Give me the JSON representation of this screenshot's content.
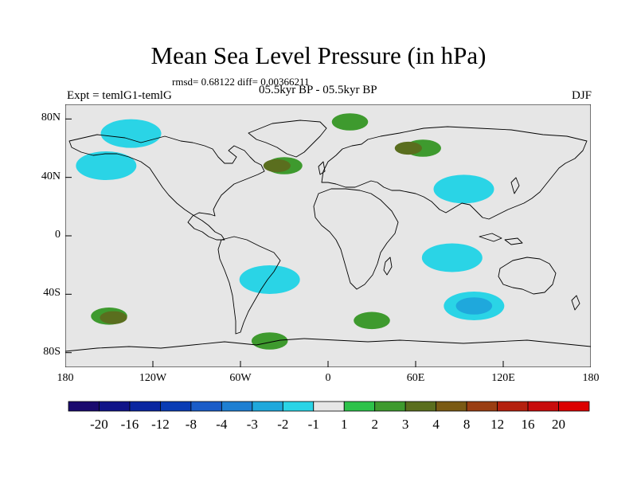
{
  "title": "Mean Sea Level Pressure (in hPa)",
  "stats": "rmsd= 0.68122 diff= 0.00366211",
  "experiment": "Expt = temlG1-temlG",
  "period": "05.5kyr BP - 05.5kyr BP",
  "season": "DJF",
  "chart_data": {
    "type": "heatmap",
    "subtype": "global difference map",
    "variable": "Mean Sea Level Pressure difference (hPa)",
    "lon_range": [
      -180,
      180
    ],
    "lat_range": [
      -90,
      90
    ],
    "lon_ticks": [
      {
        "value": -180,
        "label": "180"
      },
      {
        "value": -120,
        "label": "120W"
      },
      {
        "value": -60,
        "label": "60W"
      },
      {
        "value": 0,
        "label": "0"
      },
      {
        "value": 60,
        "label": "60E"
      },
      {
        "value": 120,
        "label": "120E"
      },
      {
        "value": 180,
        "label": "180"
      }
    ],
    "lat_ticks": [
      {
        "value": 80,
        "label": "80N"
      },
      {
        "value": 40,
        "label": "40N"
      },
      {
        "value": 0,
        "label": "0"
      },
      {
        "value": -40,
        "label": "40S"
      },
      {
        "value": -80,
        "label": "80S"
      }
    ],
    "colorbar": {
      "labels": [
        "-20",
        "-16",
        "-12",
        "-8",
        "-4",
        "-3",
        "-2",
        "-1",
        "1",
        "2",
        "3",
        "4",
        "8",
        "12",
        "16",
        "20"
      ],
      "colors": [
        "#1a0a6e",
        "#101488",
        "#0a26a0",
        "#0a3cb4",
        "#1a5cc8",
        "#1e7fd2",
        "#1fa8dc",
        "#2ad4e6",
        "#e6e6e6",
        "#2dc24a",
        "#3e9a2e",
        "#5a6e1e",
        "#7a5a14",
        "#9a3e12",
        "#b4200e",
        "#c80c0c",
        "#dc0000"
      ]
    },
    "background_color": "#e6e6e6",
    "anomalies": [
      {
        "region": "Arctic Canada",
        "lon": -135,
        "lat": 70,
        "level": -1
      },
      {
        "region": "North Pacific",
        "lon": -152,
        "lat": 48,
        "level": -1
      },
      {
        "region": "North Atlantic",
        "lon": -30,
        "lat": 48,
        "level": 2
      },
      {
        "region": "North Atlantic core",
        "lon": -35,
        "lat": 48,
        "level": 3
      },
      {
        "region": "Barents Sea",
        "lon": 15,
        "lat": 78,
        "level": 2
      },
      {
        "region": "Siberia",
        "lon": 65,
        "lat": 60,
        "level": 2
      },
      {
        "region": "Siberia core",
        "lon": 55,
        "lat": 60,
        "level": 3
      },
      {
        "region": "Tibet",
        "lon": 93,
        "lat": 32,
        "level": -1
      },
      {
        "region": "South Indian Ocean",
        "lon": 85,
        "lat": -15,
        "level": -1
      },
      {
        "region": "South Pacific",
        "lon": -150,
        "lat": -55,
        "level": 2
      },
      {
        "region": "South Pacific core",
        "lon": -147,
        "lat": -56,
        "level": 3
      },
      {
        "region": "Southern Ocean (Indian sector)",
        "lon": 100,
        "lat": -48,
        "level": -1
      },
      {
        "region": "Southern Ocean (Indian sector) core",
        "lon": 100,
        "lat": -48,
        "level": -2
      },
      {
        "region": "South Atlantic",
        "lon": -40,
        "lat": -30,
        "level": -1
      },
      {
        "region": "Antarctic coast (Weddell)",
        "lon": -40,
        "lat": -72,
        "level": 2
      },
      {
        "region": "South Atlantic (Southern Ocean)",
        "lon": 30,
        "lat": -58,
        "level": 2
      }
    ]
  }
}
